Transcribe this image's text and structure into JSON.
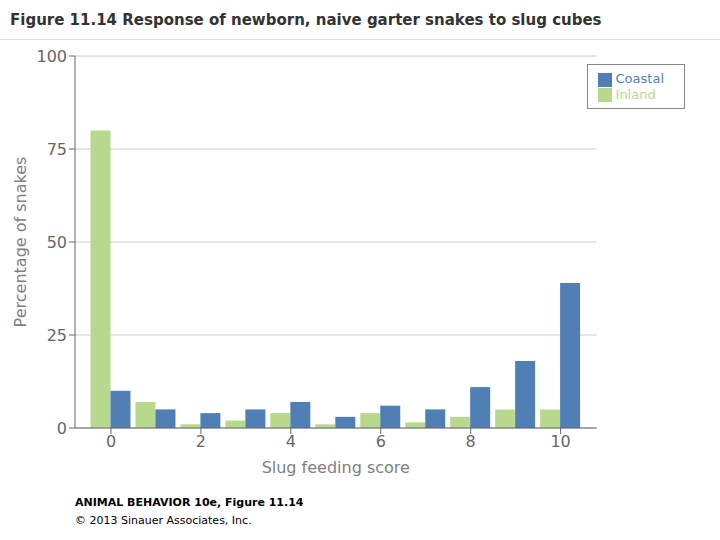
{
  "chart_data": {
    "type": "bar",
    "title": "Figure 11.14  Response of newborn, naive garter snakes to slug cubes",
    "xlabel": "Slug feeding score",
    "ylabel": "Percentage of snakes",
    "x": [
      0,
      1,
      2,
      3,
      4,
      5,
      6,
      7,
      8,
      9,
      10
    ],
    "series": [
      {
        "name": "Inland",
        "color": "#b8d98d",
        "values": [
          80,
          7,
          1,
          2,
          4,
          1,
          4,
          1.5,
          3,
          5,
          5
        ]
      },
      {
        "name": "Coastal",
        "color": "#4f7fb5",
        "values": [
          10,
          5,
          4,
          5,
          7,
          3,
          6,
          5,
          11,
          18,
          39
        ]
      }
    ],
    "xlim": [
      -0.8,
      10.8
    ],
    "xticks": [
      0,
      2,
      4,
      6,
      8,
      10
    ],
    "ylim": [
      0,
      100
    ],
    "yticks": [
      0,
      25,
      50,
      75,
      100
    ],
    "grid": true,
    "legend": "upper right",
    "annotations": [
      "ANIMAL BEHAVIOR 10e, Figure 11.14",
      "© 2013 Sinauer Associates, Inc."
    ]
  }
}
